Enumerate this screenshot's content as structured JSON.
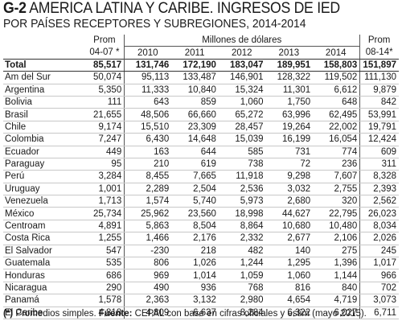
{
  "title": {
    "bold": "G-2",
    "text": "AMERICA LATINA Y CARIBE. INGRESOS DE IED"
  },
  "subtitle": "POR PAÍSES RECEPTORES Y SUBREGIONES, 2014-2014",
  "header": {
    "col_prom_a_line1": "Prom",
    "col_prom_a_line2": "04-07 *",
    "span_label": "Millones de dólares",
    "years": [
      "2010",
      "2011",
      "2012",
      "2013",
      "2014"
    ],
    "col_prom_b_line1": "Prom",
    "col_prom_b_line2": "08-14*"
  },
  "total": {
    "name": "Total",
    "vals": [
      "85,517",
      "131,746",
      "172,190",
      "183,047",
      "189,951",
      "158,803",
      "151,897"
    ]
  },
  "groups": [
    [
      {
        "name": "Am del Sur",
        "vals": [
          "50,074",
          "95,113",
          "133,487",
          "146,901",
          "128,322",
          "119,502",
          "111,130"
        ]
      },
      {
        "name": "Argentina",
        "vals": [
          "5,350",
          "11,333",
          "10,840",
          "15,324",
          "11,301",
          "6,612",
          "9,879"
        ]
      },
      {
        "name": "Bolivia",
        "vals": [
          "111",
          "643",
          "859",
          "1,060",
          "1,750",
          "648",
          "842"
        ]
      },
      {
        "name": "Brasil",
        "vals": [
          "21,655",
          "48,506",
          "66,660",
          "65,272",
          "63,996",
          "62,495",
          "53,991"
        ]
      },
      {
        "name": "Chile",
        "vals": [
          "9,174",
          "15,510",
          "23,309",
          "28,457",
          "19,264",
          "22,002",
          "19,791"
        ]
      }
    ],
    [
      {
        "name": "Colombia",
        "vals": [
          "7,247",
          "6,430",
          "14,648",
          "15,039",
          "16,199",
          "16,054",
          "12,424"
        ]
      },
      {
        "name": "Ecuador",
        "vals": [
          "449",
          "163",
          "644",
          "585",
          "731",
          "774",
          "609"
        ]
      },
      {
        "name": "Paraguay",
        "vals": [
          "95",
          "210",
          "619",
          "738",
          "72",
          "236",
          "311"
        ]
      },
      {
        "name": "Perú",
        "vals": [
          "3,284",
          "8,455",
          "7,665",
          "11,918",
          "9,298",
          "7,607",
          "8,328"
        ]
      },
      {
        "name": "Uruguay",
        "vals": [
          "1,001",
          "2,289",
          "2,504",
          "2,536",
          "3,032",
          "2,755",
          "2,393"
        ]
      }
    ],
    [
      {
        "name": "Venezuela",
        "vals": [
          "1,713",
          "1,574",
          "5,740",
          "5,973",
          "2,680",
          "320",
          "2,562"
        ]
      },
      {
        "name": "México",
        "vals": [
          "25,734",
          "25,962",
          "23,560",
          "18,998",
          "44,627",
          "22,795",
          "26,023"
        ]
      },
      {
        "name": "Centroam",
        "vals": [
          "4,891",
          "5,863",
          "8,504",
          "8,864",
          "10,680",
          "10,480",
          "8,034"
        ]
      },
      {
        "name": "Costa Rica",
        "vals": [
          "1,255",
          "1,466",
          "2,176",
          "2,332",
          "2,677",
          "2,106",
          "2,026"
        ]
      },
      {
        "name": "El Salvador",
        "vals": [
          "547",
          "-230",
          "218",
          "482",
          "140",
          "275",
          "245"
        ]
      }
    ],
    [
      {
        "name": "Guatemala",
        "vals": [
          "535",
          "806",
          "1,026",
          "1,244",
          "1,295",
          "1,396",
          "1,017"
        ]
      },
      {
        "name": "Honduras",
        "vals": [
          "686",
          "969",
          "1,014",
          "1,059",
          "1,060",
          "1,144",
          "966"
        ]
      },
      {
        "name": "Nicaragua",
        "vals": [
          "290",
          "490",
          "936",
          "768",
          "816",
          "840",
          "702"
        ]
      },
      {
        "name": "Panamá",
        "vals": [
          "1,578",
          "2,363",
          "3,132",
          "2,980",
          "4,654",
          "4,719",
          "3,073"
        ]
      },
      {
        "name": "El Caribe",
        "vals": [
          "4,818",
          "4,809",
          "6,637",
          "8,284",
          "6,322",
          "6,027",
          "6,711"
        ]
      }
    ]
  ],
  "footnote": {
    "marker": "(*)",
    "note": " Promedios simples.",
    "source_label": "Fuente:",
    "source_text": " CEPAL con base en cifras oficiales y estim (mayo 2015)."
  }
}
